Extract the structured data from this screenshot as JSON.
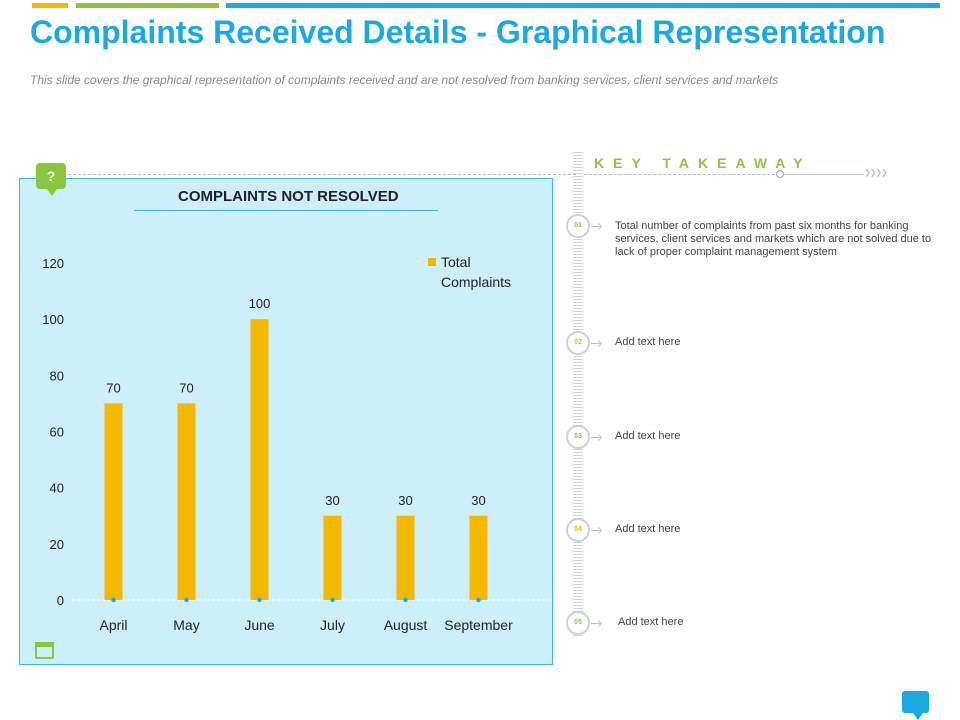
{
  "page": {
    "title": "Complaints Received Details - Graphical Representation",
    "subtitle": "This slide covers the graphical representation of complaints received and are not resolved from banking services, client services and markets",
    "question_badge": "?"
  },
  "chart_data": {
    "type": "bar",
    "title": "COMPLAINTS NOT RESOLVED",
    "categories": [
      "April",
      "May",
      "June",
      "July",
      "August",
      "September"
    ],
    "series": [
      {
        "name": "Total Complaints",
        "values": [
          70,
          70,
          100,
          30,
          30,
          30
        ],
        "color": "#f5b800"
      }
    ],
    "ylim": [
      0,
      120
    ],
    "yticks": [
      0,
      20,
      40,
      60,
      80,
      100,
      120
    ],
    "data_labels": true,
    "legend": "top-right",
    "grid": false,
    "xlabel": "",
    "ylabel": ""
  },
  "takeaway": {
    "title": "KEY TAKEAWAY",
    "items": [
      {
        "num": "01",
        "text": "Total number of complaints from past six months for banking services, client services and markets which are not solved due to lack of proper complaint management system",
        "color": "green"
      },
      {
        "num": "02",
        "text": "Add text here",
        "color": "yellow"
      },
      {
        "num": "03",
        "text": "Add text here",
        "color": "green"
      },
      {
        "num": "04",
        "text": "Add text here",
        "color": "yellow"
      },
      {
        "num": "05",
        "text": "Add text here",
        "color": "green"
      }
    ]
  },
  "colors": {
    "accent_blue": "#1ba9e1",
    "accent_green": "#8cc63f",
    "accent_yellow": "#f5b800",
    "panel_bg": "#cdeefb"
  }
}
